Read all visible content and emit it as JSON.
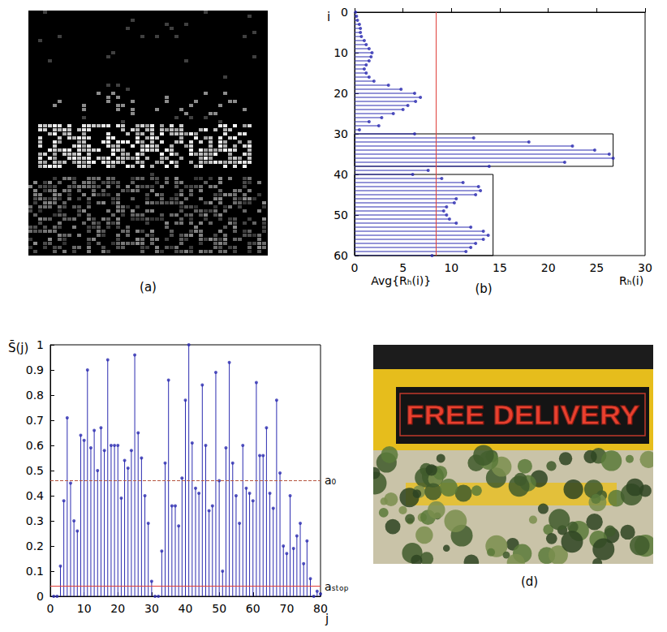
{
  "chart_data": [
    {
      "panel": "(a)",
      "type": "image"
    },
    {
      "panel": "(b)",
      "type": "stem",
      "orientation": "horizontal",
      "ylabel": "i",
      "xlabel": "Rₕ(i)",
      "i": [
        0,
        1,
        2,
        3,
        4,
        5,
        6,
        7,
        8,
        9,
        10,
        11,
        12,
        13,
        14,
        15,
        16,
        17,
        18,
        19,
        20,
        21,
        22,
        23,
        24,
        25,
        26,
        27,
        28,
        29,
        30,
        31,
        32,
        33,
        34,
        35,
        36,
        37,
        38,
        39,
        40,
        41,
        42,
        43,
        44,
        45,
        46,
        47,
        48,
        49,
        50,
        51,
        52,
        53,
        54,
        55,
        56,
        57,
        58,
        59,
        60
      ],
      "values": [
        0.1,
        0.2,
        0.3,
        0.5,
        0.6,
        0.6,
        0.7,
        1.0,
        1.2,
        1.5,
        1.8,
        1.7,
        1.5,
        1.2,
        1.0,
        1.2,
        1.5,
        2.0,
        3.5,
        4.8,
        6.2,
        6.8,
        6.3,
        5.5,
        5.0,
        4.0,
        2.8,
        1.5,
        2.5,
        0.5,
        6.2,
        12.3,
        18.0,
        22.5,
        24.8,
        26.3,
        26.7,
        21.7,
        13.9,
        7.6,
        6.0,
        9.0,
        11.2,
        12.8,
        13.0,
        12.5,
        10.5,
        10.3,
        9.5,
        9.2,
        9.5,
        9.8,
        10.5,
        12.0,
        13.3,
        13.8,
        13.3,
        12.5,
        12.0,
        11.5,
        8.0
      ],
      "color": "#2b2bb0",
      "xlim": [
        0,
        30
      ],
      "xticks": [
        0,
        5,
        10,
        15,
        20,
        25,
        30
      ],
      "ylim": [
        0,
        60
      ],
      "yticks": [
        0,
        10,
        20,
        30,
        40,
        50,
        60
      ],
      "average": {
        "label": "Avg{Rₕ(i)}",
        "value": 8.4,
        "color": "#e0403a"
      },
      "boxes": [
        {
          "from": 30,
          "to": 38,
          "value": 26.7
        },
        {
          "from": 40,
          "to": 60,
          "value": 14.3
        }
      ]
    },
    {
      "type": "stem",
      "ylabel": "S̄(j)",
      "xlabel": "j",
      "x": [
        1,
        2,
        3,
        4,
        5,
        6,
        7,
        8,
        9,
        10,
        11,
        12,
        13,
        14,
        15,
        16,
        17,
        18,
        19,
        20,
        21,
        22,
        23,
        24,
        25,
        26,
        27,
        28,
        29,
        30,
        31,
        32,
        33,
        34,
        35,
        36,
        37,
        38,
        39,
        40,
        41,
        42,
        43,
        44,
        45,
        46,
        47,
        48,
        49,
        50,
        51,
        52,
        53,
        54,
        55,
        56,
        57,
        58,
        59,
        60,
        61,
        62,
        63,
        64,
        65,
        66,
        67,
        68,
        69,
        70,
        71,
        72,
        73,
        74,
        75,
        76,
        77,
        78,
        79,
        80
      ],
      "values": [
        0.0,
        0.0,
        0.12,
        0.38,
        0.71,
        0.45,
        0.3,
        0.26,
        0.64,
        0.62,
        0.9,
        0.59,
        0.66,
        0.5,
        0.67,
        0.58,
        0.94,
        0.6,
        0.6,
        0.6,
        0.39,
        0.54,
        0.51,
        0.58,
        0.96,
        0.65,
        0.55,
        0.4,
        0.29,
        0.06,
        0.0,
        0.0,
        0.18,
        0.53,
        0.86,
        0.36,
        0.36,
        0.28,
        0.47,
        0.78,
        1.0,
        0.61,
        0.43,
        0.41,
        0.84,
        0.6,
        0.34,
        0.36,
        0.89,
        0.46,
        0.1,
        0.59,
        0.93,
        0.53,
        0.4,
        0.29,
        0.6,
        0.43,
        0.41,
        0.38,
        0.85,
        0.56,
        0.56,
        0.67,
        0.41,
        0.35,
        0.78,
        0.49,
        0.2,
        0.17,
        0.4,
        0.19,
        0.24,
        0.29,
        0.13,
        0.22,
        0.07,
        0.0,
        0.02,
        0.01
      ],
      "color": "#2b2bb0",
      "xlim": [
        0,
        80
      ],
      "xticks": [
        0,
        10,
        20,
        30,
        40,
        50,
        60,
        70,
        80
      ],
      "ylim": [
        0,
        1
      ],
      "yticks": [
        0,
        0.1,
        0.2,
        0.3,
        0.4,
        0.5,
        0.6,
        0.7,
        0.8,
        0.9,
        1
      ],
      "thresholds": [
        {
          "label": "a₀",
          "value": 0.46,
          "color": "#b5553f",
          "line_style": "dashed"
        },
        {
          "label": "aₛₜₒₚ",
          "value": 0.04,
          "color": "#e0403a",
          "line_style": "solid"
        }
      ]
    },
    {
      "panel": "(d)",
      "type": "image",
      "text": "FREE DELIVERY"
    }
  ]
}
